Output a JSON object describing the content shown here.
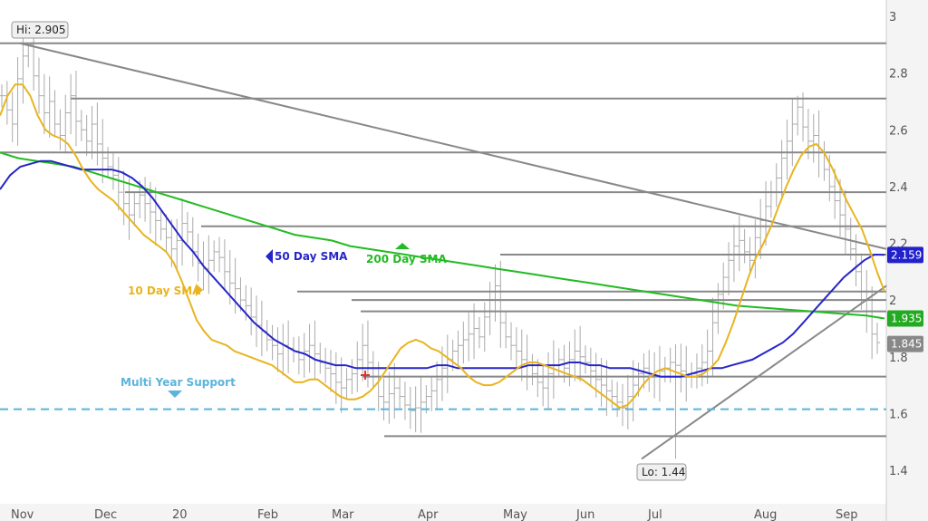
{
  "chart_data": {
    "type": "line",
    "y_axis": {
      "ylim": [
        1.27,
        3.03
      ],
      "ticks": [
        "3",
        "2.8",
        "2.6",
        "2.4",
        "2.2",
        "2",
        "1.8",
        "1.6",
        "1.4"
      ],
      "position": "right"
    },
    "x_axis": {
      "labels": [
        "Nov",
        "Dec",
        "20",
        "Feb",
        "Mar",
        "Apr",
        "May",
        "Jun",
        "Jul",
        "Aug",
        "Sep"
      ]
    },
    "price_bars": {
      "description": "OHLC bars",
      "color": "#aaaaaa",
      "close": [
        2.72,
        2.67,
        2.62,
        2.78,
        2.86,
        2.9,
        2.79,
        2.72,
        2.66,
        2.7,
        2.62,
        2.58,
        2.66,
        2.72,
        2.63,
        2.6,
        2.56,
        2.62,
        2.55,
        2.5,
        2.47,
        2.44,
        2.38,
        2.34,
        2.3,
        2.34,
        2.37,
        2.34,
        2.31,
        2.28,
        2.25,
        2.22,
        2.18,
        2.21,
        2.27,
        2.24,
        2.17,
        2.13,
        2.11,
        2.14,
        2.17,
        2.15,
        2.1,
        2.06,
        2.04,
        2.0,
        1.98,
        1.94,
        1.91,
        1.89,
        1.86,
        1.84,
        1.81,
        1.84,
        1.83,
        1.82,
        1.79,
        1.82,
        1.84,
        1.81,
        1.78,
        1.76,
        1.74,
        1.71,
        1.69,
        1.72,
        1.74,
        1.79,
        1.84,
        1.78,
        1.73,
        1.66,
        1.64,
        1.67,
        1.69,
        1.66,
        1.63,
        1.61,
        1.62,
        1.64,
        1.66,
        1.68,
        1.72,
        1.76,
        1.79,
        1.82,
        1.84,
        1.86,
        1.88,
        1.9,
        1.87,
        1.94,
        2.0,
        2.05,
        1.92,
        1.87,
        1.84,
        1.82,
        1.79,
        1.77,
        1.74,
        1.71,
        1.69,
        1.74,
        1.77,
        1.79,
        1.76,
        1.79,
        1.82,
        1.8,
        1.78,
        1.75,
        1.72,
        1.7,
        1.68,
        1.66,
        1.64,
        1.62,
        1.66,
        1.7,
        1.74,
        1.76,
        1.74,
        1.73,
        1.75,
        1.76,
        1.78,
        1.77,
        1.75,
        1.73,
        1.74,
        1.76,
        1.78,
        1.82,
        1.92,
        2.02,
        2.08,
        2.14,
        2.19,
        2.21,
        2.17,
        2.14,
        2.22,
        2.28,
        2.33,
        2.38,
        2.43,
        2.5,
        2.56,
        2.62,
        2.68,
        2.61,
        2.56,
        2.58,
        2.52,
        2.46,
        2.4,
        2.35,
        2.3,
        2.25,
        2.18,
        2.1,
        2.03,
        1.96,
        1.88,
        1.85
      ],
      "hi": 2.905,
      "lo": 1.44,
      "last": 1.845
    },
    "series": [
      {
        "name": "10 Day SMA",
        "color": "#e8b420",
        "values": [
          2.65,
          2.72,
          2.76,
          2.76,
          2.72,
          2.65,
          2.6,
          2.58,
          2.57,
          2.55,
          2.51,
          2.46,
          2.42,
          2.39,
          2.37,
          2.35,
          2.32,
          2.29,
          2.26,
          2.23,
          2.21,
          2.19,
          2.17,
          2.13,
          2.07,
          2.0,
          1.93,
          1.89,
          1.86,
          1.85,
          1.84,
          1.82,
          1.81,
          1.8,
          1.79,
          1.78,
          1.77,
          1.75,
          1.73,
          1.71,
          1.71,
          1.72,
          1.72,
          1.7,
          1.68,
          1.66,
          1.65,
          1.65,
          1.66,
          1.68,
          1.71,
          1.75,
          1.79,
          1.83,
          1.85,
          1.86,
          1.85,
          1.83,
          1.82,
          1.8,
          1.78,
          1.76,
          1.73,
          1.71,
          1.7,
          1.7,
          1.71,
          1.73,
          1.75,
          1.77,
          1.78,
          1.78,
          1.77,
          1.76,
          1.75,
          1.74,
          1.73,
          1.72,
          1.7,
          1.68,
          1.66,
          1.64,
          1.62,
          1.63,
          1.66,
          1.7,
          1.73,
          1.75,
          1.76,
          1.75,
          1.74,
          1.73,
          1.73,
          1.74,
          1.76,
          1.79,
          1.85,
          1.92,
          2.0,
          2.08,
          2.15,
          2.2,
          2.26,
          2.33,
          2.4,
          2.46,
          2.51,
          2.54,
          2.55,
          2.52,
          2.47,
          2.41,
          2.35,
          2.3,
          2.25,
          2.18,
          2.1,
          2.03
        ]
      },
      {
        "name": "50 Day SMA",
        "color": "#2626c8",
        "values": [
          2.39,
          2.44,
          2.47,
          2.48,
          2.49,
          2.49,
          2.48,
          2.47,
          2.46,
          2.46,
          2.46,
          2.46,
          2.45,
          2.43,
          2.4,
          2.36,
          2.31,
          2.26,
          2.21,
          2.17,
          2.12,
          2.08,
          2.04,
          2.0,
          1.96,
          1.92,
          1.89,
          1.86,
          1.84,
          1.82,
          1.81,
          1.79,
          1.78,
          1.77,
          1.77,
          1.76,
          1.76,
          1.76,
          1.76,
          1.76,
          1.76,
          1.76,
          1.76,
          1.77,
          1.77,
          1.76,
          1.76,
          1.76,
          1.76,
          1.76,
          1.76,
          1.76,
          1.77,
          1.77,
          1.77,
          1.77,
          1.78,
          1.78,
          1.77,
          1.77,
          1.76,
          1.76,
          1.76,
          1.75,
          1.74,
          1.73,
          1.73,
          1.73,
          1.74,
          1.75,
          1.76,
          1.76,
          1.77,
          1.78,
          1.79,
          1.81,
          1.83,
          1.85,
          1.88,
          1.92,
          1.96,
          2.0,
          2.04,
          2.08,
          2.11,
          2.14,
          2.16,
          2.159
        ]
      },
      {
        "name": "200 Day SMA",
        "color": "#22bb22",
        "values": [
          2.52,
          2.5,
          2.49,
          2.48,
          2.47,
          2.45,
          2.43,
          2.41,
          2.39,
          2.37,
          2.35,
          2.33,
          2.31,
          2.29,
          2.27,
          2.25,
          2.23,
          2.22,
          2.21,
          2.19,
          2.18,
          2.17,
          2.16,
          2.15,
          2.14,
          2.13,
          2.12,
          2.11,
          2.1,
          2.09,
          2.08,
          2.07,
          2.06,
          2.05,
          2.04,
          2.03,
          2.02,
          2.01,
          2.0,
          1.99,
          1.98,
          1.975,
          1.97,
          1.965,
          1.96,
          1.955,
          1.95,
          1.945,
          1.935
        ]
      }
    ],
    "horizontal_levels": [
      2.905,
      2.71,
      2.52,
      2.38,
      2.26,
      2.16,
      2.03,
      2.0,
      1.96,
      1.73,
      1.52
    ],
    "support_level": {
      "name": "Multi Year Support",
      "value": 1.615,
      "color": "#5ab4dc"
    },
    "trendlines": [
      {
        "from": {
          "label": "Nov",
          "value": 2.905
        },
        "to": {
          "label": "Sep",
          "value": 2.18
        }
      },
      {
        "from": {
          "label": "Jul",
          "value": 1.44
        },
        "to": {
          "label": "Sep",
          "value": 2.05
        }
      }
    ],
    "annotations": {
      "hi_label": "Hi: 2.905",
      "lo_label": "Lo: 1.44",
      "sma10_label": "10 Day SMA",
      "sma50_label": "50 Day SMA",
      "sma200_label": "200 Day SMA",
      "support_label": "Multi Year Support"
    },
    "badges": [
      {
        "text": "2.159",
        "value": 2.159,
        "color": "#2222cc"
      },
      {
        "text": "1.935",
        "value": 1.935,
        "color": "#22aa22"
      },
      {
        "text": "1.845",
        "value": 1.845,
        "color": "#888888"
      }
    ]
  }
}
